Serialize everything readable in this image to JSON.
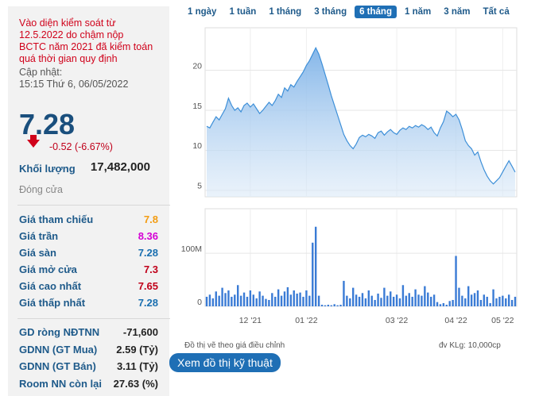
{
  "info": {
    "notice": [
      "Vào diện kiểm soát từ",
      "12.5.2022 do chậm nộp",
      "BCTC năm 2021 đã kiểm toán",
      "quá thời gian quy định"
    ],
    "updated_label": "Cập nhật:",
    "updated_time": "15:15 Thứ 6, 06/05/2022",
    "price": 7.28,
    "change": "-0.52 (-6.67%)",
    "volume_label": "Khối lượng",
    "volume": "17,482,000",
    "close_label": "Đóng cửa",
    "stats": [
      {
        "label": "Giá tham chiếu",
        "value": 7.8,
        "color": "#f39c12"
      },
      {
        "label": "Giá trần",
        "value": 8.36,
        "color": "#d400d4"
      },
      {
        "label": "Giá sàn",
        "value": 7.28,
        "color": "#1a6fb0"
      },
      {
        "label": "Giá mở cửa",
        "value": 7.3,
        "color": "#c0001a"
      },
      {
        "label": "Giá cao nhất",
        "value": 7.65,
        "color": "#c0001a"
      },
      {
        "label": "Giá thấp nhất",
        "value": 7.28,
        "color": "#1a6fb0"
      }
    ],
    "foreign": [
      {
        "label": "GD ròng NĐTNN",
        "value": "-71,600"
      },
      {
        "label": "GDNN (GT Mua)",
        "value": "2.59 (Tỷ)"
      },
      {
        "label": "GDNN (GT Bán)",
        "value": "3.11 (Tỷ)"
      },
      {
        "label": "Room NN còn lại",
        "value": "27.63 (%)"
      }
    ]
  },
  "tabs": [
    "1 ngày",
    "1 tuần",
    "1 tháng",
    "3 tháng",
    "6 tháng",
    "1 năm",
    "3 năm",
    "Tất cả"
  ],
  "active_tab": 4,
  "chart_data": [
    {
      "type": "area",
      "color": "#3d8fd8",
      "values": [
        13.0,
        12.8,
        13.5,
        14.2,
        13.8,
        14.5,
        15.2,
        16.5,
        15.6,
        15.0,
        15.3,
        14.8,
        15.6,
        15.9,
        15.4,
        15.8,
        15.2,
        14.6,
        15.0,
        15.5,
        16.0,
        15.6,
        16.2,
        17.0,
        16.6,
        17.8,
        17.4,
        18.2,
        17.9,
        18.6,
        19.2,
        19.8,
        20.6,
        21.2,
        22.0,
        22.8,
        22.0,
        20.8,
        19.5,
        18.2,
        16.8,
        15.6,
        14.4,
        13.2,
        12.0,
        11.2,
        10.6,
        10.2,
        10.8,
        11.6,
        11.9,
        11.7,
        12.0,
        11.8,
        11.5,
        12.2,
        12.4,
        11.9,
        12.3,
        12.6,
        12.2,
        12.0,
        12.5,
        12.8,
        12.6,
        13.0,
        12.8,
        13.1,
        12.9,
        13.2,
        13.0,
        12.6,
        12.9,
        12.2,
        11.8,
        12.8,
        13.6,
        14.9,
        14.6,
        14.2,
        14.5,
        13.8,
        12.6,
        11.2,
        10.6,
        10.2,
        9.4,
        9.8,
        8.6,
        7.6,
        6.8,
        6.2,
        5.8,
        6.2,
        6.6,
        7.3,
        8.0,
        8.7,
        8.0,
        7.28
      ],
      "ylim": [
        4.2,
        25.3
      ],
      "yticks": [
        5,
        10,
        15,
        20
      ],
      "grid": true
    },
    {
      "type": "bar",
      "color": "#3a7bd5",
      "values": [
        18000000,
        22000000,
        15000000,
        28000000,
        20000000,
        35000000,
        25000000,
        30000000,
        18000000,
        22000000,
        40000000,
        20000000,
        26000000,
        18000000,
        30000000,
        22000000,
        15000000,
        28000000,
        20000000,
        14000000,
        12000000,
        25000000,
        18000000,
        32000000,
        20000000,
        28000000,
        36000000,
        22000000,
        30000000,
        24000000,
        26000000,
        18000000,
        30000000,
        20000000,
        120000000,
        150000000,
        20000000,
        3000000,
        2000000,
        3000000,
        2000000,
        4000000,
        2000000,
        3000000,
        48000000,
        20000000,
        15000000,
        35000000,
        22000000,
        18000000,
        25000000,
        15000000,
        30000000,
        20000000,
        12000000,
        24000000,
        16000000,
        35000000,
        20000000,
        28000000,
        18000000,
        22000000,
        15000000,
        40000000,
        20000000,
        25000000,
        18000000,
        32000000,
        22000000,
        20000000,
        38000000,
        26000000,
        18000000,
        22000000,
        8000000,
        4000000,
        6000000,
        3000000,
        10000000,
        12000000,
        95000000,
        35000000,
        20000000,
        15000000,
        38000000,
        22000000,
        25000000,
        30000000,
        12000000,
        22000000,
        18000000,
        6000000,
        32000000,
        15000000,
        18000000,
        20000000,
        15000000,
        22000000,
        12000000,
        18000000
      ],
      "ylim": [
        0,
        184000000
      ],
      "yticks": [
        0,
        {
          "value": 100000000,
          "label": "100M"
        }
      ],
      "xticks": [
        {
          "value": 14,
          "label": "12 '21"
        },
        {
          "value": 32,
          "label": "01 '22"
        },
        {
          "value": 61,
          "label": "03 '22"
        },
        {
          "value": 80,
          "label": "04 '22"
        },
        {
          "value": 95,
          "label": "05 '22"
        }
      ],
      "grid": true
    }
  ],
  "notes": {
    "adjusted": "Đồ thị vẽ theo giá điều chỉnh",
    "unit": "đv KLg: 10,000cp"
  },
  "button": "Xem đồ thị kỹ thuật"
}
